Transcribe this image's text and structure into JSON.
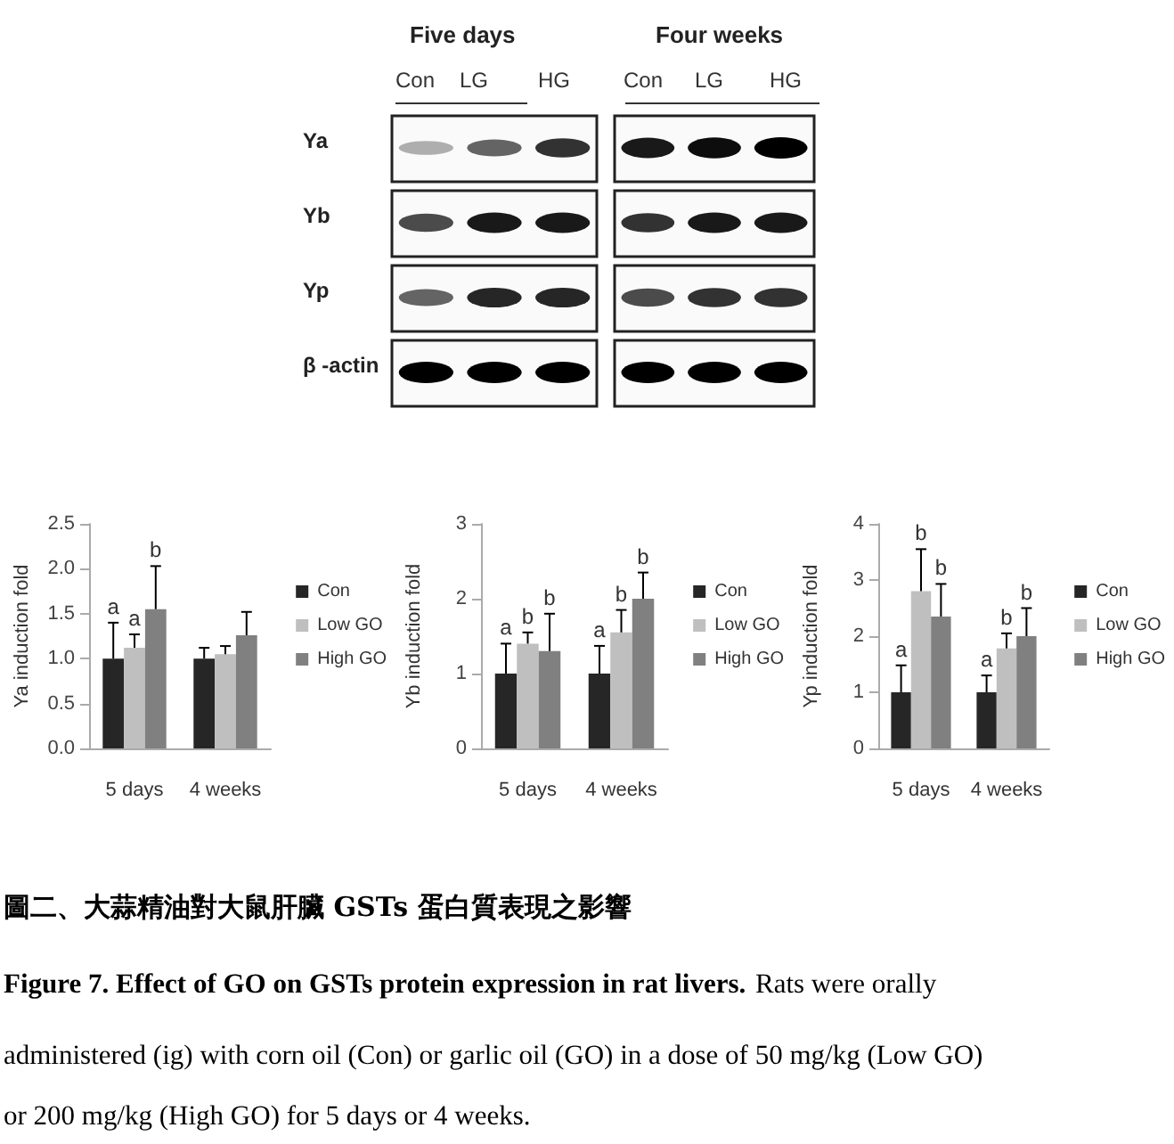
{
  "chart_data": [
    {
      "type": "other",
      "annotations": [
        "Five days",
        "Four weeks",
        "Con",
        "LG",
        "HG",
        "Con",
        "LG",
        "HG",
        "Ya",
        "Yb",
        "Yp",
        "β -actin"
      ]
    },
    {
      "type": "bar",
      "ylabel": "Ya induction fold",
      "categories": [
        "5 days",
        "4 weeks"
      ],
      "ylim": [
        0,
        2.5
      ],
      "yticks": [
        {
          "value": 0,
          "label": "0.0"
        },
        0.5,
        {
          "value": 1,
          "label": "1.0"
        },
        1.5,
        {
          "value": 2,
          "label": "2.0"
        },
        2.5
      ],
      "legend": "right",
      "series": [
        {
          "name": "Con",
          "color": "#262626",
          "values": [
            1.0,
            1.0
          ],
          "errors": [
            [
              1.0,
              1.4
            ],
            [
              1.0,
              1.12
            ]
          ],
          "value_labels": [
            "a",
            null
          ]
        },
        {
          "name": "Low GO",
          "color": "#bfbfbf",
          "values": [
            1.12,
            1.05
          ],
          "errors": [
            [
              1.12,
              1.27
            ],
            [
              1.05,
              1.14
            ]
          ],
          "value_labels": [
            "a",
            null
          ]
        },
        {
          "name": "High GO",
          "color": "#808080",
          "values": [
            1.55,
            1.26
          ],
          "errors": [
            [
              1.55,
              2.03
            ],
            [
              1.26,
              1.52
            ]
          ],
          "value_labels": [
            "b",
            null
          ]
        }
      ]
    },
    {
      "type": "bar",
      "ylabel": "Yb induction fold",
      "categories": [
        "5 days",
        "4 weeks"
      ],
      "ylim": [
        0,
        3
      ],
      "yticks": [
        0,
        1,
        2,
        3
      ],
      "legend": "right",
      "series": [
        {
          "name": "Con",
          "color": "#262626",
          "values": [
            1.0,
            1.0
          ],
          "errors": [
            [
              1.0,
              1.4
            ],
            [
              1.0,
              1.37
            ]
          ],
          "value_labels": [
            "a",
            "a"
          ]
        },
        {
          "name": "Low GO",
          "color": "#bfbfbf",
          "values": [
            1.4,
            1.55
          ],
          "errors": [
            [
              1.4,
              1.55
            ],
            [
              1.55,
              1.85
            ]
          ],
          "value_labels": [
            "b",
            "b"
          ]
        },
        {
          "name": "High GO",
          "color": "#808080",
          "values": [
            1.3,
            2.0
          ],
          "errors": [
            [
              1.3,
              1.8
            ],
            [
              2.0,
              2.35
            ]
          ],
          "value_labels": [
            "b",
            "b"
          ]
        }
      ]
    },
    {
      "type": "bar",
      "ylabel": "Yp induction fold",
      "categories": [
        "5 days",
        "4 weeks"
      ],
      "ylim": [
        0,
        4
      ],
      "yticks": [
        0,
        1,
        2,
        3,
        4
      ],
      "legend": "right",
      "series": [
        {
          "name": "Con",
          "color": "#262626",
          "values": [
            1.0,
            1.0
          ],
          "errors": [
            [
              1.0,
              1.48
            ],
            [
              1.0,
              1.3
            ]
          ],
          "value_labels": [
            "a",
            "a"
          ]
        },
        {
          "name": "Low GO",
          "color": "#bfbfbf",
          "values": [
            2.8,
            1.78
          ],
          "errors": [
            [
              2.8,
              3.55
            ],
            [
              1.78,
              2.05
            ]
          ],
          "value_labels": [
            "b",
            "b"
          ]
        },
        {
          "name": "High GO",
          "color": "#808080",
          "values": [
            2.35,
            2.0
          ],
          "errors": [
            [
              2.35,
              2.93
            ],
            [
              2.0,
              2.5
            ]
          ],
          "value_labels": [
            "b",
            "b"
          ]
        }
      ]
    },
    {
      "type": "other",
      "annotations": [
        "圖二、大蒜精油對大鼠肝臟 GSTs 蛋白質表現之影響",
        "Figure 7. Effect of GO on GSTs protein expression in rat livers.",
        "Rats were orally",
        "administered (ig) with corn oil (Con) or garlic oil (GO) in a dose of 50 mg/kg (Low GO)",
        "or 200 mg/kg (High GO) for 5 days or 4 weeks."
      ]
    }
  ]
}
